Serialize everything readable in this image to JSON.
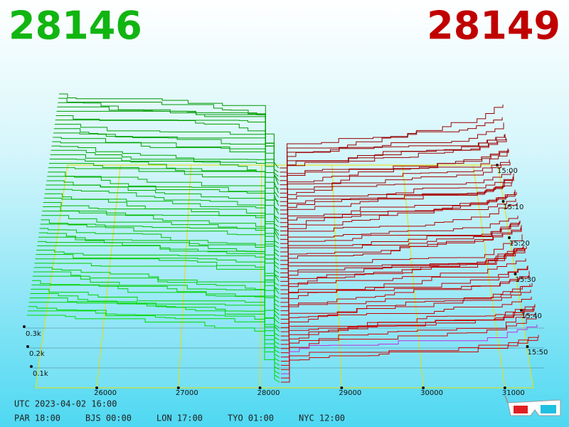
{
  "header": {
    "bid": "28146",
    "ask": "28149"
  },
  "price_axis": {
    "ticks": [
      "26000",
      "27000",
      "28000",
      "29000",
      "30000",
      "31000"
    ]
  },
  "time_axis": {
    "ticks": [
      "15:00",
      "15:10",
      "15:20",
      "15:30",
      "15:40",
      "15:50"
    ]
  },
  "depth_axis": {
    "ticks": [
      "0.3k",
      "0.2k",
      "0.1k"
    ]
  },
  "footer": {
    "utc": "UTC 2023-04-02 16:00",
    "zones": [
      "PAR 18:00",
      "BJS 00:00",
      "LON 17:00",
      "TYO 01:00",
      "NYC 12:00"
    ]
  }
}
